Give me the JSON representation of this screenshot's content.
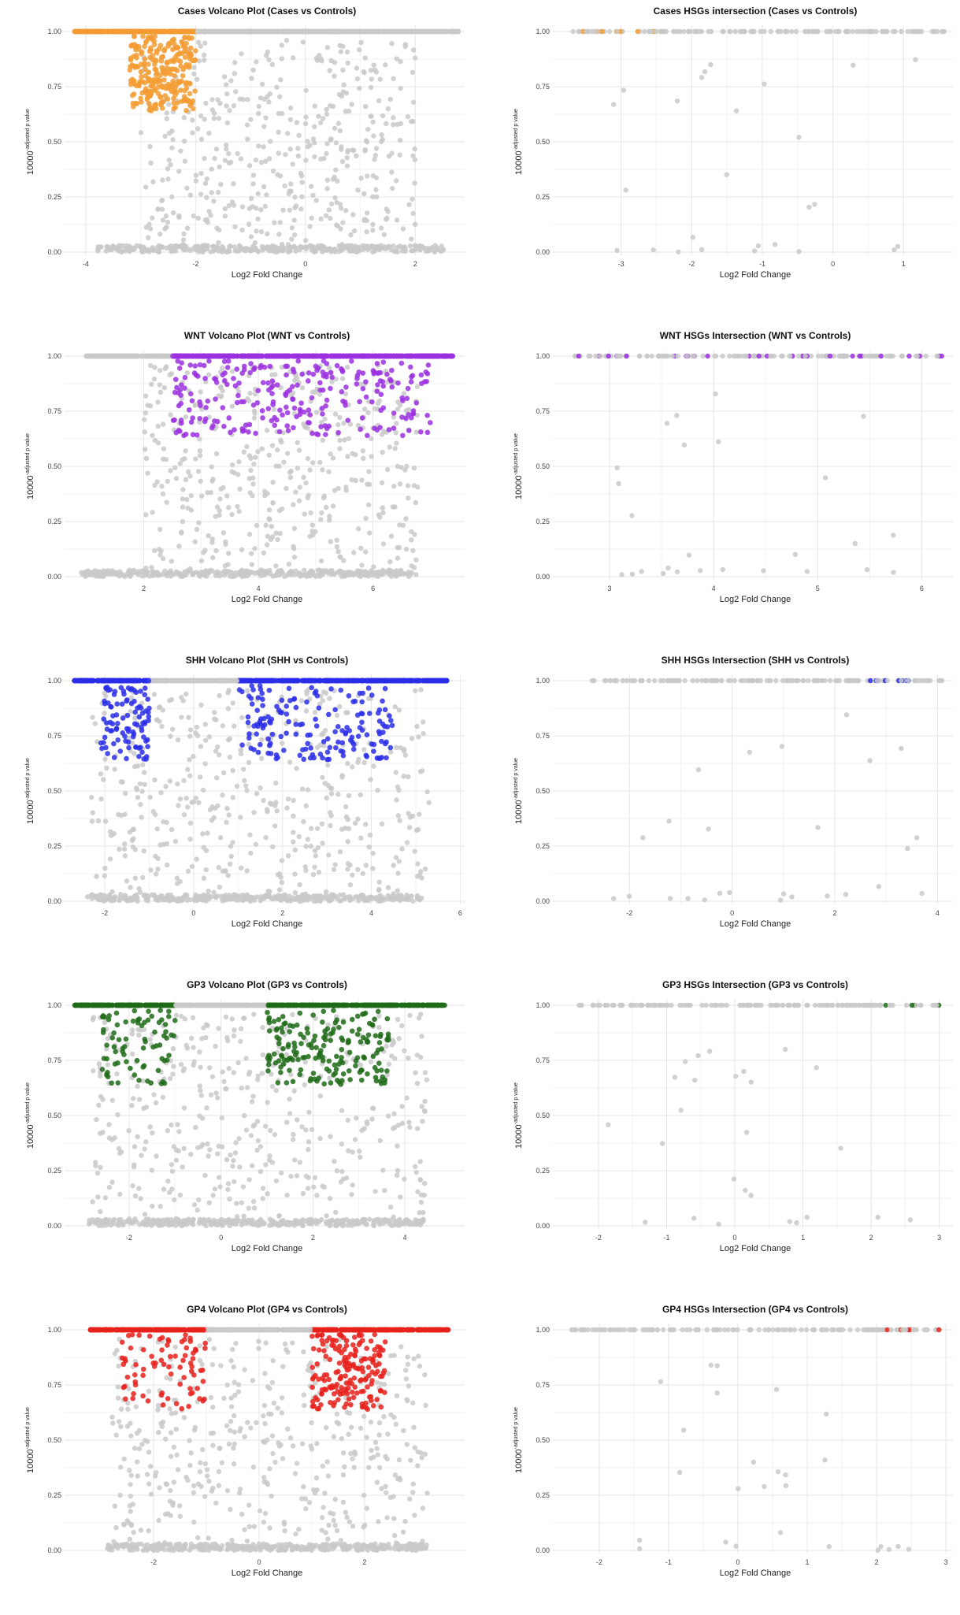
{
  "chart_data": [
    {
      "type": "scatter",
      "title": "Cases Volcano Plot (Cases vs Controls)",
      "xlabel": "Log2 Fold Change",
      "ylabel_base": "10000",
      "ylabel_exp": "-adjusted p value",
      "xlim": [
        -4.3,
        2.9
      ],
      "ylim": [
        0,
        1
      ],
      "xticks": [
        -4,
        -2,
        0,
        2
      ],
      "yticks": [
        0.0,
        0.25,
        0.5,
        0.75,
        1.0
      ],
      "highlight_color": "#f39c32",
      "highlight_mode": "left",
      "threshold": 2,
      "point_range": [
        -4.2,
        2.8
      ],
      "grid": true
    },
    {
      "type": "scatter",
      "title": "Cases HSGs intersection (Cases vs Controls)",
      "xlabel": "Log2 Fold Change",
      "ylabel_base": "10000",
      "ylabel_exp": "-adjusted p value",
      "xlim": [
        -3.9,
        1.7
      ],
      "ylim": [
        0,
        1
      ],
      "xticks": [
        -3,
        -2,
        -1,
        0,
        1
      ],
      "yticks": [
        0.0,
        0.25,
        0.5,
        0.75,
        1.0
      ],
      "highlight_color": "#f39c32",
      "highlight_mode": "left",
      "threshold": 2.5,
      "point_range": [
        -3.7,
        1.6
      ],
      "grid": true
    },
    {
      "type": "scatter",
      "title": "WNT Volcano Plot (WNT vs Controls)",
      "xlabel": "Log2 Fold Change",
      "ylabel_base": "10000",
      "ylabel_exp": "-adjusted p value",
      "xlim": [
        0.7,
        7.6
      ],
      "ylim": [
        0,
        1
      ],
      "xticks": [
        2,
        4,
        6
      ],
      "yticks": [
        0.0,
        0.25,
        0.5,
        0.75,
        1.0
      ],
      "highlight_color": "#9b30e0",
      "highlight_mode": "right",
      "threshold": 2.5,
      "point_range": [
        1,
        7.4
      ],
      "grid": true
    },
    {
      "type": "scatter",
      "title": "WNT HSGs Intersection (WNT vs Controls)",
      "xlabel": "Log2 Fold Change",
      "ylabel_base": "10000",
      "ylabel_exp": "-adjusted p value",
      "xlim": [
        2.5,
        6.3
      ],
      "ylim": [
        0,
        1
      ],
      "xticks": [
        3,
        4,
        5,
        6
      ],
      "yticks": [
        0.0,
        0.25,
        0.5,
        0.75,
        1.0
      ],
      "highlight_color": "#9b30e0",
      "highlight_mode": "right",
      "threshold": 2.6,
      "point_range": [
        2.6,
        6.2
      ],
      "grid": true
    },
    {
      "type": "scatter",
      "title": "SHH Volcano Plot (SHH vs Controls)",
      "xlabel": "Log2 Fold Change",
      "ylabel_base": "10000",
      "ylabel_exp": "-adjusted p value",
      "xlim": [
        -2.8,
        6.1
      ],
      "ylim": [
        0,
        1
      ],
      "xticks": [
        -2,
        0,
        2,
        4,
        6
      ],
      "yticks": [
        0.0,
        0.25,
        0.5,
        0.75,
        1.0
      ],
      "highlight_color": "#2a2ee8",
      "highlight_mode": "both",
      "threshold_left": -1,
      "threshold_right": 1,
      "point_range": [
        -2.7,
        5.7
      ],
      "grid": true
    },
    {
      "type": "scatter",
      "title": "SHH HSGs Intersection (SHH vs Controls)",
      "xlabel": "Log2 Fold Change",
      "ylabel_base": "10000",
      "ylabel_exp": "-adjusted p value",
      "xlim": [
        -3.4,
        4.3
      ],
      "ylim": [
        0,
        1
      ],
      "xticks": [
        -2,
        0,
        2,
        4
      ],
      "yticks": [
        0.0,
        0.25,
        0.5,
        0.75,
        1.0
      ],
      "highlight_color": "#2a2ee8",
      "highlight_mode": "right",
      "threshold": 2.6,
      "point_range": [
        -2.9,
        4.2
      ],
      "grid": true
    },
    {
      "type": "scatter",
      "title": "GP3 Volcano Plot (GP3 vs Controls)",
      "xlabel": "Log2 Fold Change",
      "ylabel_base": "10000",
      "ylabel_exp": "-adjusted p value",
      "xlim": [
        -3.3,
        5.3
      ],
      "ylim": [
        0,
        1
      ],
      "xticks": [
        -2,
        0,
        2,
        4
      ],
      "yticks": [
        0.0,
        0.25,
        0.5,
        0.75,
        1.0
      ],
      "highlight_color": "#1e6b17",
      "highlight_mode": "both",
      "threshold_left": -1,
      "threshold_right": 1,
      "point_range": [
        -3.2,
        4.9
      ],
      "grid": true
    },
    {
      "type": "scatter",
      "title": "GP3 HSGs Intersection (GP3 vs Controls)",
      "xlabel": "Log2 Fold Change",
      "ylabel_base": "10000",
      "ylabel_exp": "-adjusted p value",
      "xlim": [
        -2.6,
        3.2
      ],
      "ylim": [
        0,
        1
      ],
      "xticks": [
        -2,
        -1,
        0,
        1,
        2,
        3
      ],
      "yticks": [
        0.0,
        0.25,
        0.5,
        0.75,
        1.0
      ],
      "highlight_color": "#1e6b17",
      "highlight_mode": "right",
      "threshold": 2.2,
      "point_range": [
        -2.3,
        3
      ],
      "grid": true
    },
    {
      "type": "scatter",
      "title": "GP4 Volcano Plot (GP4 vs Controls)",
      "xlabel": "Log2 Fold Change",
      "ylabel_base": "10000",
      "ylabel_exp": "-adjusted p value",
      "xlim": [
        -3.6,
        3.9
      ],
      "ylim": [
        0,
        1
      ],
      "xticks": [
        -2,
        0,
        2
      ],
      "yticks": [
        0.0,
        0.25,
        0.5,
        0.75,
        1.0
      ],
      "highlight_color": "#e8211c",
      "highlight_mode": "both",
      "threshold_left": -1,
      "threshold_right": 1,
      "point_range": [
        -3.2,
        3.6
      ],
      "grid": true
    },
    {
      "type": "scatter",
      "title": "GP4 HSGs Intersection (GP4 vs Controls)",
      "xlabel": "Log2 Fold Change",
      "ylabel_base": "10000",
      "ylabel_exp": "-adjusted p value",
      "xlim": [
        -2.6,
        3.1
      ],
      "ylim": [
        0,
        1
      ],
      "xticks": [
        -2,
        -1,
        0,
        1,
        2,
        3
      ],
      "yticks": [
        0.0,
        0.25,
        0.5,
        0.75,
        1.0
      ],
      "highlight_color": "#e8211c",
      "highlight_mode": "right",
      "threshold": 2.0,
      "point_range": [
        -2.4,
        2.9
      ],
      "grid": true
    }
  ]
}
